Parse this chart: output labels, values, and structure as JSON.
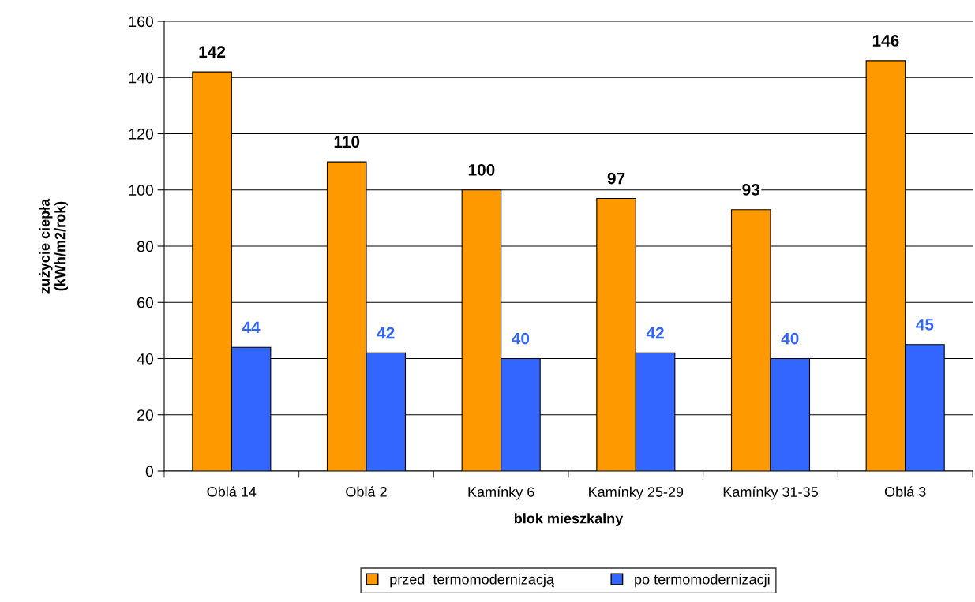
{
  "chart_data": {
    "type": "bar",
    "xlabel": "blok mieszkalny",
    "ylabel": "zużycie ciepła\n(kWh/m2/rok)",
    "categories": [
      "Oblá 14",
      "Oblá 2",
      "Kamínky 6",
      "Kamínky 25-29",
      "Kamínky 31-35",
      "Oblá 3"
    ],
    "series": [
      {
        "name": "przed  termomodernizacją",
        "color": "#ff9900",
        "values": [
          142,
          110,
          100,
          97,
          93,
          146
        ]
      },
      {
        "name": "po termomodernizacji",
        "color": "#3366ff",
        "values": [
          44,
          42,
          40,
          42,
          40,
          45
        ]
      }
    ],
    "ylim": [
      0,
      160
    ],
    "yticks": [
      0,
      20,
      40,
      60,
      80,
      100,
      120,
      140,
      160
    ],
    "grid": "y",
    "legend": "bottom",
    "data_labels": true
  }
}
